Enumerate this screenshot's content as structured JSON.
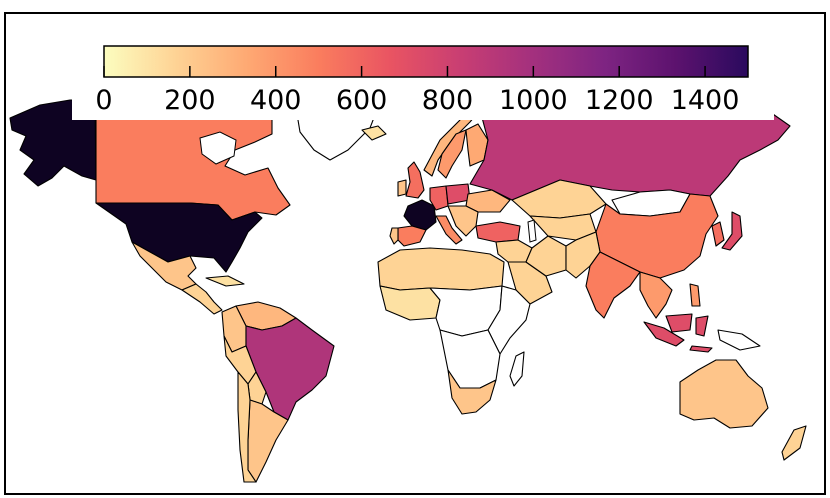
{
  "colormap": {
    "stops": [
      "#fcfdbf",
      "#fed395",
      "#fea973",
      "#fa7d5e",
      "#e95462",
      "#c83e73",
      "#a3307e",
      "#7e2482",
      "#5c126e",
      "#2a0a5e",
      "#000004"
    ],
    "range": [
      0,
      1500
    ],
    "ticks": [
      0,
      200,
      400,
      600,
      800,
      1000,
      1200,
      1400
    ],
    "tick_labels": [
      "0",
      "200",
      "400",
      "600",
      "800",
      "1000",
      "1200",
      "1400"
    ]
  },
  "no_data_color": "#ffffff",
  "regions": [
    {
      "id": "alaska",
      "value": 1450
    },
    {
      "id": "canada",
      "value": 450
    },
    {
      "id": "usa",
      "value": 1450
    },
    {
      "id": "mexico",
      "value": 200
    },
    {
      "id": "central-america",
      "value": 150
    },
    {
      "id": "cuba",
      "value": 100
    },
    {
      "id": "greenland",
      "value": null
    },
    {
      "id": "iceland",
      "value": 100
    },
    {
      "id": "venezuela",
      "value": 250
    },
    {
      "id": "colombia",
      "value": 200
    },
    {
      "id": "brazil",
      "value": 850
    },
    {
      "id": "peru",
      "value": 150
    },
    {
      "id": "bolivia",
      "value": 150
    },
    {
      "id": "argentina",
      "value": 200
    },
    {
      "id": "chile",
      "value": 150
    },
    {
      "id": "uk",
      "value": 500
    },
    {
      "id": "ireland",
      "value": 200
    },
    {
      "id": "france",
      "value": 1450
    },
    {
      "id": "spain",
      "value": 450
    },
    {
      "id": "portugal",
      "value": 200
    },
    {
      "id": "germany",
      "value": 550
    },
    {
      "id": "italy",
      "value": 400
    },
    {
      "id": "poland",
      "value": 650
    },
    {
      "id": "norway",
      "value": 250
    },
    {
      "id": "sweden",
      "value": 350
    },
    {
      "id": "finland",
      "value": 300
    },
    {
      "id": "ukraine",
      "value": 250
    },
    {
      "id": "balkans",
      "value": 200
    },
    {
      "id": "turkey",
      "value": 550
    },
    {
      "id": "russia",
      "value": 800
    },
    {
      "id": "kazakhstan",
      "value": 150
    },
    {
      "id": "central-asia",
      "value": 150
    },
    {
      "id": "mongolia",
      "value": null
    },
    {
      "id": "china",
      "value": 450
    },
    {
      "id": "korea",
      "value": 500
    },
    {
      "id": "japan",
      "value": 650
    },
    {
      "id": "middle-east",
      "value": 150
    },
    {
      "id": "arabia",
      "value": 150
    },
    {
      "id": "iran",
      "value": 150
    },
    {
      "id": "afghanistan-pakistan",
      "value": 150
    },
    {
      "id": "india",
      "value": 450
    },
    {
      "id": "southeast-asia",
      "value": 350
    },
    {
      "id": "indonesia",
      "value": 650
    },
    {
      "id": "philippines",
      "value": 350
    },
    {
      "id": "png",
      "value": null
    },
    {
      "id": "australia",
      "value": 200
    },
    {
      "id": "new-zealand",
      "value": 150
    },
    {
      "id": "north-africa",
      "value": 150
    },
    {
      "id": "west-africa",
      "value": 100
    },
    {
      "id": "central-africa",
      "value": null
    },
    {
      "id": "east-africa",
      "value": null
    },
    {
      "id": "southern-africa",
      "value": null
    },
    {
      "id": "south-africa",
      "value": 200
    },
    {
      "id": "madagascar",
      "value": null
    }
  ]
}
